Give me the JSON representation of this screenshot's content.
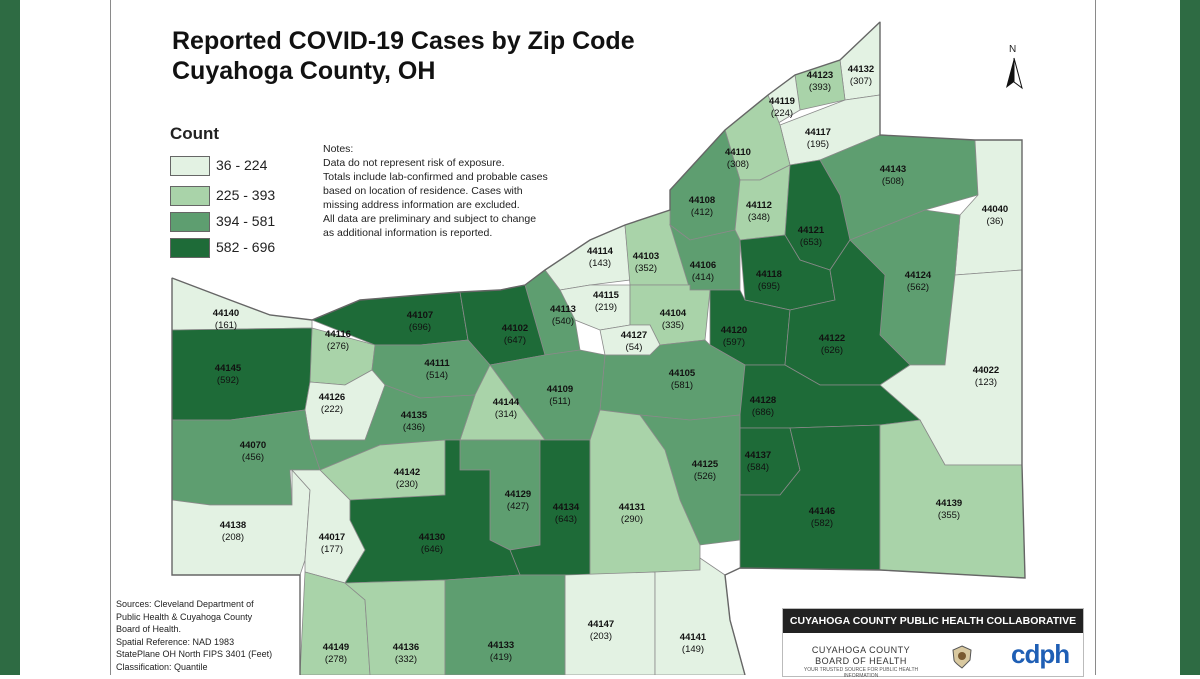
{
  "title": {
    "line1": "Reported COVID-19 Cases by Zip Code",
    "line2": "Cuyahoga County, OH"
  },
  "legend": {
    "title": "Count",
    "items": [
      {
        "label": "36 - 224",
        "color": "#e3f2e3"
      },
      {
        "label": "225 - 393",
        "color": "#a9d3a9"
      },
      {
        "label": "394 - 581",
        "color": "#5e9e70"
      },
      {
        "label": "582 - 696",
        "color": "#1e6b38"
      }
    ]
  },
  "notes": [
    "Notes:",
    "Data do not represent risk of exposure.",
    "Totals include lab-confirmed and probable cases",
    "based on location of residence. Cases with",
    "missing address information are excluded.",
    "All data are preliminary and subject to change",
    "as additional information is reported."
  ],
  "north_label": "N",
  "sources": [
    "Sources: Cleveland Department of",
    "Public Health & Cuyahoga County",
    "Board of Health.",
    "Spatial Reference: NAD 1983",
    "StatePlane OH North FIPS 3401 (Feet)",
    "Classification: Quantile"
  ],
  "logos": {
    "header": "CUYAHOGA COUNTY PUBLIC HEALTH COLLABORATIVE",
    "board_line1": "CUYAHOGA COUNTY",
    "board_line2": "BOARD OF HEALTH",
    "board_sub": "YOUR TRUSTED SOURCE FOR PUBLIC HEALTH INFORMATION",
    "cdph": "cdph"
  },
  "zips": [
    {
      "zip": "44123",
      "count": "(393)"
    },
    {
      "zip": "44132",
      "count": "(307)"
    },
    {
      "zip": "44119",
      "count": "(224)"
    },
    {
      "zip": "44117",
      "count": "(195)"
    },
    {
      "zip": "44110",
      "count": "(308)"
    },
    {
      "zip": "44143",
      "count": "(508)"
    },
    {
      "zip": "44108",
      "count": "(412)"
    },
    {
      "zip": "44112",
      "count": "(348)"
    },
    {
      "zip": "44040",
      "count": "(36)"
    },
    {
      "zip": "44121",
      "count": "(653)"
    },
    {
      "zip": "44114",
      "count": "(143)"
    },
    {
      "zip": "44103",
      "count": "(352)"
    },
    {
      "zip": "44106",
      "count": "(414)"
    },
    {
      "zip": "44118",
      "count": "(695)"
    },
    {
      "zip": "44124",
      "count": "(562)"
    },
    {
      "zip": "44115",
      "count": "(219)"
    },
    {
      "zip": "44113",
      "count": "(540)"
    },
    {
      "zip": "44104",
      "count": "(335)"
    },
    {
      "zip": "44140",
      "count": "(161)"
    },
    {
      "zip": "44107",
      "count": "(696)"
    },
    {
      "zip": "44102",
      "count": "(647)"
    },
    {
      "zip": "44127",
      "count": "(54)"
    },
    {
      "zip": "44120",
      "count": "(597)"
    },
    {
      "zip": "44122",
      "count": "(626)"
    },
    {
      "zip": "44116",
      "count": "(276)"
    },
    {
      "zip": "44145",
      "count": "(592)"
    },
    {
      "zip": "44111",
      "count": "(514)"
    },
    {
      "zip": "44105",
      "count": "(581)"
    },
    {
      "zip": "44022",
      "count": "(123)"
    },
    {
      "zip": "44126",
      "count": "(222)"
    },
    {
      "zip": "44109",
      "count": "(511)"
    },
    {
      "zip": "44144",
      "count": "(314)"
    },
    {
      "zip": "44128",
      "count": "(686)"
    },
    {
      "zip": "44135",
      "count": "(436)"
    },
    {
      "zip": "44070",
      "count": "(456)"
    },
    {
      "zip": "44137",
      "count": "(584)"
    },
    {
      "zip": "44125",
      "count": "(526)"
    },
    {
      "zip": "44142",
      "count": "(230)"
    },
    {
      "zip": "44129",
      "count": "(427)"
    },
    {
      "zip": "44134",
      "count": "(643)"
    },
    {
      "zip": "44131",
      "count": "(290)"
    },
    {
      "zip": "44146",
      "count": "(582)"
    },
    {
      "zip": "44139",
      "count": "(355)"
    },
    {
      "zip": "44138",
      "count": "(208)"
    },
    {
      "zip": "44017",
      "count": "(177)"
    },
    {
      "zip": "44130",
      "count": "(646)"
    },
    {
      "zip": "44147",
      "count": "(203)"
    },
    {
      "zip": "44141",
      "count": "(149)"
    },
    {
      "zip": "44149",
      "count": "(278)"
    },
    {
      "zip": "44136",
      "count": "(332)"
    },
    {
      "zip": "44133",
      "count": "(419)"
    }
  ]
}
